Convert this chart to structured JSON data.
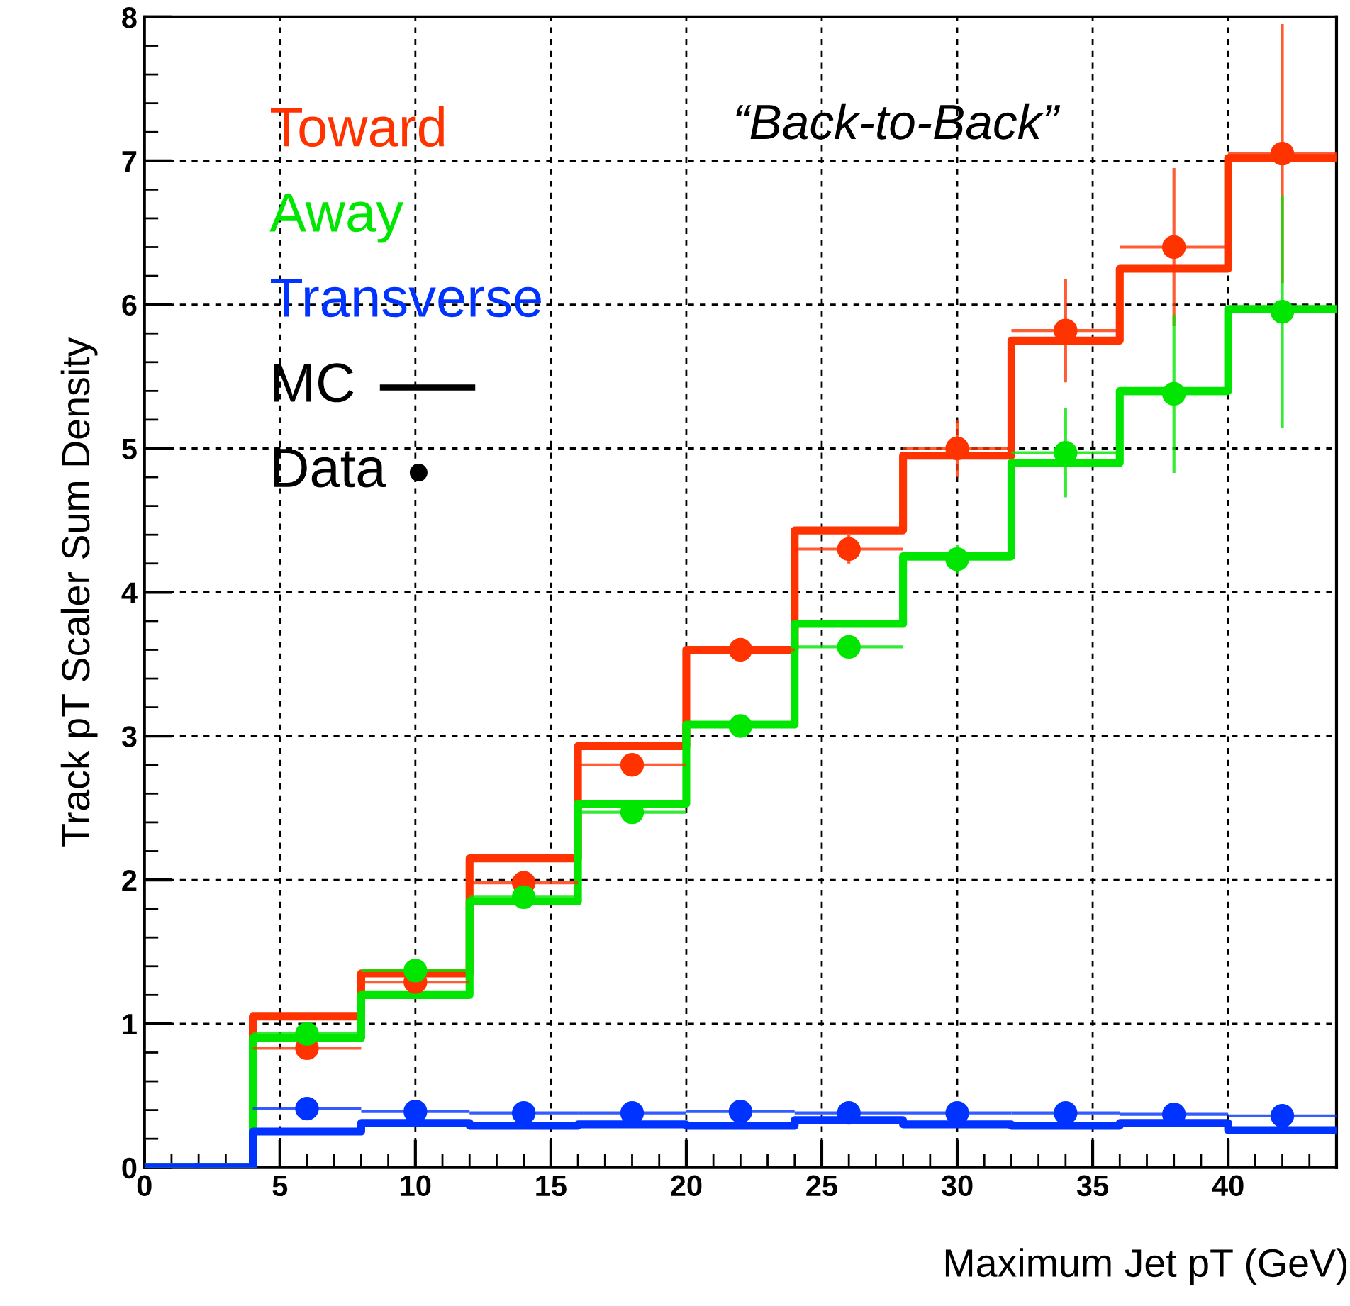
{
  "chart_data": {
    "type": "step",
    "xlabel": "Maximum Jet pT (GeV)",
    "ylabel": "Track pT Scaler Sum Density",
    "annotations": [
      "“Back-to-Back”",
      "MC",
      "Data"
    ],
    "x": [
      2,
      6,
      10,
      14,
      18,
      22,
      26,
      30,
      34,
      38,
      42
    ],
    "series": [
      {
        "name": "Toward",
        "color": "#ff3300",
        "marker": "none",
        "values": [
          0,
          1.05,
          1.35,
          2.15,
          2.93,
          3.6,
          4.43,
          4.95,
          5.75,
          6.25,
          7.02
        ]
      },
      {
        "name": "Away",
        "color": "#00e600",
        "marker": "none",
        "values": [
          0,
          0.9,
          1.2,
          1.85,
          2.53,
          3.08,
          3.78,
          4.25,
          4.9,
          5.4,
          5.97
        ]
      },
      {
        "name": "Transverse",
        "color": "#0033ff",
        "marker": "none",
        "values": [
          0,
          0.25,
          0.31,
          0.29,
          0.3,
          0.29,
          0.33,
          0.3,
          0.29,
          0.31,
          0.26
        ]
      },
      {
        "color": "#ff3300",
        "type": "scatter",
        "marker": "circle",
        "values": [
          null,
          0.83,
          1.29,
          1.98,
          2.8,
          3.6,
          4.3,
          5.0,
          5.82,
          6.4,
          7.05
        ],
        "errors": [
          null,
          null,
          null,
          null,
          null,
          null,
          0.1,
          0.2,
          0.36,
          0.55,
          0.9
        ],
        "xerrors": [
          null,
          2,
          2,
          2,
          2,
          2,
          2,
          2,
          2,
          2,
          2
        ]
      },
      {
        "color": "#00e600",
        "type": "scatter",
        "marker": "circle",
        "values": [
          null,
          0.93,
          1.37,
          1.88,
          2.47,
          3.07,
          3.62,
          4.23,
          4.97,
          5.38,
          5.95
        ],
        "errors": [
          null,
          null,
          null,
          null,
          null,
          null,
          null,
          0.1,
          0.31,
          0.55,
          0.81
        ],
        "xerrors": [
          null,
          2,
          2,
          2,
          2,
          2,
          2,
          2,
          2,
          2,
          2
        ]
      },
      {
        "color": "#0033ff",
        "type": "scatter",
        "marker": "circle",
        "values": [
          null,
          0.41,
          0.39,
          0.38,
          0.38,
          0.39,
          0.38,
          0.38,
          0.38,
          0.37,
          0.36
        ],
        "xerrors": [
          null,
          2,
          2,
          2,
          2,
          2,
          2,
          2,
          2,
          2,
          2
        ]
      }
    ],
    "xlim": [
      0,
      44
    ],
    "xticks": [
      0,
      5,
      10,
      15,
      20,
      25,
      30,
      35,
      40
    ],
    "ylim": [
      0,
      8
    ],
    "yticks": [
      0,
      1,
      2,
      3,
      4,
      5,
      6,
      7,
      8
    ],
    "grid": true,
    "legend": "top left",
    "line_style": "solid"
  }
}
